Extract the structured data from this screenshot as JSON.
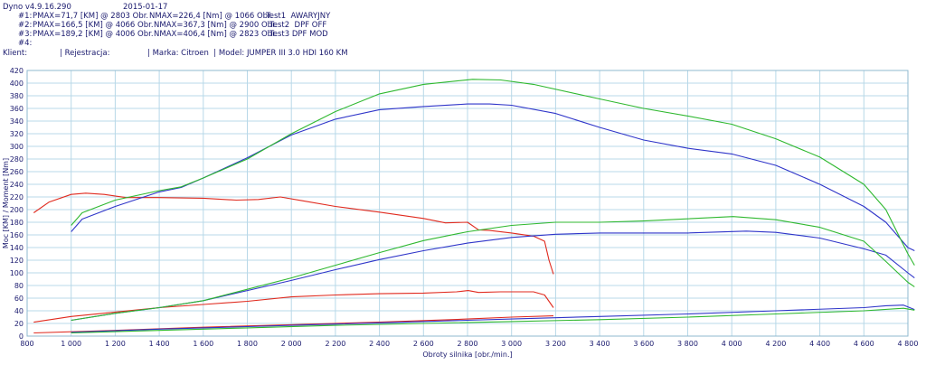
{
  "header": {
    "version": "Dyno v4.9.16.290",
    "date": "2015-01-17",
    "tests": [
      {
        "id": "#1:",
        "pmax": "PMAX=71,7 [KM] @ 2803 Obr.",
        "nmax": "NMAX=226,4 [Nm] @ 1066 Obr.",
        "name": "Test1  AWARYJNY"
      },
      {
        "id": "#2:",
        "pmax": "PMAX=166,5 [KM] @ 4066 Obr.",
        "nmax": "NMAX=367,3 [Nm] @ 2900 Obr.",
        "name": "Test2  DPF OFF"
      },
      {
        "id": "#3:",
        "pmax": "PMAX=189,2 [KM] @ 4006 Obr.",
        "nmax": "NMAX=406,4 [Nm] @ 2823 Obr.",
        "name": "Test3 DPF MOD"
      },
      {
        "id": "#4:",
        "pmax": "",
        "nmax": "",
        "name": ""
      }
    ],
    "client_label": "Klient:",
    "registration_label": "| Rejestracja:",
    "make_model": "| Marka: Citroen  | Model: JUMPER III 3.0 HDI 160 KM"
  },
  "colors": {
    "test1": "#e02a1e",
    "test2": "#2f35c9",
    "test3": "#2fb82f",
    "grid": "#b8d8e8",
    "axis": "#1a1a6e",
    "loss": "#2a7fae"
  },
  "chart_data": {
    "type": "line",
    "xlabel": "Obroty silnika [obr./min.]",
    "ylabel": "Moc [KM] / Moment [Nm]",
    "xlim": [
      800,
      4800
    ],
    "ylim": [
      0,
      420
    ],
    "xticks": [
      "800",
      "1 000",
      "1 200",
      "1 400",
      "1 600",
      "1 800",
      "2 000",
      "2 200",
      "2 400",
      "2 600",
      "2 800",
      "3 000",
      "3 200",
      "3 400",
      "3 600",
      "3 800",
      "4 000",
      "4 200",
      "4 400",
      "4 600",
      "4 800"
    ],
    "yticks": [
      "0",
      "20",
      "40",
      "60",
      "80",
      "100",
      "120",
      "140",
      "160",
      "180",
      "200",
      "220",
      "240",
      "260",
      "280",
      "300",
      "320",
      "340",
      "360",
      "380",
      "400",
      "420"
    ],
    "series": [
      {
        "name": "Test1  AWARYJNY",
        "kind": "torque",
        "color": "#e02a1e",
        "points": [
          [
            830,
            195
          ],
          [
            900,
            212
          ],
          [
            1000,
            224
          ],
          [
            1066,
            226
          ],
          [
            1150,
            224
          ],
          [
            1250,
            219
          ],
          [
            1400,
            219
          ],
          [
            1600,
            218
          ],
          [
            1750,
            215
          ],
          [
            1850,
            216
          ],
          [
            1950,
            220
          ],
          [
            2050,
            214
          ],
          [
            2200,
            205
          ],
          [
            2400,
            196
          ],
          [
            2600,
            186
          ],
          [
            2700,
            179
          ],
          [
            2800,
            180
          ],
          [
            2850,
            168
          ],
          [
            2900,
            167
          ],
          [
            3000,
            163
          ],
          [
            3100,
            158
          ],
          [
            3150,
            150
          ],
          [
            3170,
            120
          ],
          [
            3190,
            98
          ]
        ]
      },
      {
        "name": "Test1  AWARYJNY",
        "kind": "power",
        "color": "#e02a1e",
        "points": [
          [
            830,
            22
          ],
          [
            1000,
            31
          ],
          [
            1200,
            38
          ],
          [
            1400,
            45
          ],
          [
            1600,
            50
          ],
          [
            1800,
            55
          ],
          [
            2000,
            62
          ],
          [
            2200,
            65
          ],
          [
            2400,
            67
          ],
          [
            2600,
            68
          ],
          [
            2750,
            70
          ],
          [
            2803,
            72
          ],
          [
            2850,
            69
          ],
          [
            2950,
            70
          ],
          [
            3100,
            70
          ],
          [
            3150,
            65
          ],
          [
            3190,
            45
          ]
        ]
      },
      {
        "name": "Test2  DPF OFF",
        "kind": "torque",
        "color": "#2f35c9",
        "points": [
          [
            1000,
            165
          ],
          [
            1050,
            185
          ],
          [
            1200,
            205
          ],
          [
            1400,
            228
          ],
          [
            1500,
            235
          ],
          [
            1600,
            250
          ],
          [
            1800,
            282
          ],
          [
            2000,
            318
          ],
          [
            2200,
            343
          ],
          [
            2400,
            358
          ],
          [
            2600,
            363
          ],
          [
            2800,
            367
          ],
          [
            2900,
            367
          ],
          [
            3000,
            365
          ],
          [
            3200,
            352
          ],
          [
            3400,
            330
          ],
          [
            3600,
            310
          ],
          [
            3800,
            297
          ],
          [
            4000,
            288
          ],
          [
            4200,
            270
          ],
          [
            4300,
            255
          ],
          [
            4400,
            240
          ],
          [
            4600,
            205
          ],
          [
            4700,
            180
          ],
          [
            4800,
            140
          ],
          [
            4830,
            135
          ]
        ]
      },
      {
        "name": "Test2  DPF OFF",
        "kind": "power",
        "color": "#2f35c9",
        "points": [
          [
            1000,
            25
          ],
          [
            1200,
            36
          ],
          [
            1400,
            45
          ],
          [
            1600,
            56
          ],
          [
            1800,
            72
          ],
          [
            2000,
            88
          ],
          [
            2200,
            105
          ],
          [
            2400,
            121
          ],
          [
            2600,
            135
          ],
          [
            2800,
            147
          ],
          [
            3000,
            156
          ],
          [
            3200,
            161
          ],
          [
            3400,
            163
          ],
          [
            3600,
            163
          ],
          [
            3800,
            163
          ],
          [
            4066,
            166
          ],
          [
            4200,
            164
          ],
          [
            4400,
            155
          ],
          [
            4600,
            138
          ],
          [
            4700,
            128
          ],
          [
            4800,
            100
          ],
          [
            4830,
            92
          ]
        ]
      },
      {
        "name": "Test3 DPF MOD",
        "kind": "torque",
        "color": "#2fb82f",
        "points": [
          [
            1000,
            175
          ],
          [
            1050,
            195
          ],
          [
            1200,
            215
          ],
          [
            1400,
            230
          ],
          [
            1500,
            236
          ],
          [
            1600,
            250
          ],
          [
            1800,
            280
          ],
          [
            2000,
            320
          ],
          [
            2200,
            355
          ],
          [
            2400,
            383
          ],
          [
            2600,
            398
          ],
          [
            2823,
            406
          ],
          [
            2950,
            405
          ],
          [
            3100,
            398
          ],
          [
            3400,
            375
          ],
          [
            3600,
            360
          ],
          [
            3800,
            348
          ],
          [
            4000,
            335
          ],
          [
            4200,
            312
          ],
          [
            4400,
            283
          ],
          [
            4600,
            240
          ],
          [
            4700,
            200
          ],
          [
            4800,
            130
          ],
          [
            4830,
            112
          ]
        ]
      },
      {
        "name": "Test3 DPF MOD",
        "kind": "power",
        "color": "#2fb82f",
        "points": [
          [
            1000,
            25
          ],
          [
            1200,
            36
          ],
          [
            1400,
            45
          ],
          [
            1600,
            56
          ],
          [
            1800,
            74
          ],
          [
            2000,
            92
          ],
          [
            2200,
            112
          ],
          [
            2400,
            132
          ],
          [
            2600,
            151
          ],
          [
            2800,
            165
          ],
          [
            3000,
            175
          ],
          [
            3200,
            180
          ],
          [
            3400,
            180
          ],
          [
            3600,
            182
          ],
          [
            4006,
            189
          ],
          [
            4200,
            184
          ],
          [
            4400,
            172
          ],
          [
            4600,
            150
          ],
          [
            4700,
            118
          ],
          [
            4800,
            85
          ],
          [
            4830,
            78
          ]
        ]
      },
      {
        "name": "Test1  AWARYJNY",
        "kind": "loss",
        "color": "#e02a1e",
        "points": [
          [
            830,
            5
          ],
          [
            1200,
            9
          ],
          [
            1600,
            14
          ],
          [
            2000,
            18
          ],
          [
            2400,
            22
          ],
          [
            2800,
            27
          ],
          [
            3000,
            30
          ],
          [
            3190,
            32
          ]
        ]
      },
      {
        "name": "Test2  DPF OFF",
        "kind": "loss",
        "color": "#2f35c9",
        "points": [
          [
            1000,
            6
          ],
          [
            1400,
            11
          ],
          [
            1800,
            15
          ],
          [
            2200,
            19
          ],
          [
            2600,
            23
          ],
          [
            3000,
            27
          ],
          [
            3400,
            31
          ],
          [
            3800,
            35
          ],
          [
            4200,
            40
          ],
          [
            4600,
            45
          ],
          [
            4700,
            48
          ],
          [
            4780,
            49
          ],
          [
            4830,
            42
          ]
        ]
      },
      {
        "name": "Test3 DPF MOD",
        "kind": "loss",
        "color": "#2fb82f",
        "points": [
          [
            1000,
            5
          ],
          [
            1400,
            9
          ],
          [
            1800,
            13
          ],
          [
            2200,
            17
          ],
          [
            2600,
            20
          ],
          [
            3000,
            23
          ],
          [
            3400,
            26
          ],
          [
            3800,
            30
          ],
          [
            4200,
            35
          ],
          [
            4600,
            40
          ],
          [
            4780,
            44
          ],
          [
            4830,
            41
          ]
        ]
      }
    ]
  }
}
